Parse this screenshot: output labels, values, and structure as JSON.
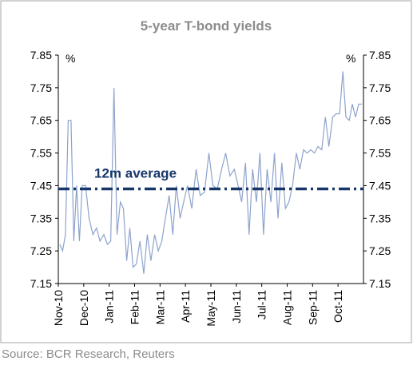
{
  "chart_data": {
    "type": "line",
    "title": "5-year T-bond yields",
    "ylabel": "%",
    "y2label": "%",
    "source": "Source: BCR Research, Reuters",
    "xlim": [
      0,
      12
    ],
    "xticks": [
      {
        "value": 0,
        "label": "Nov-10"
      },
      {
        "value": 1,
        "label": "Dec-10"
      },
      {
        "value": 2,
        "label": "Jan-11"
      },
      {
        "value": 3,
        "label": "Feb-11"
      },
      {
        "value": 4,
        "label": "Mar-11"
      },
      {
        "value": 5,
        "label": "Apr-11"
      },
      {
        "value": 6,
        "label": "May-11"
      },
      {
        "value": 7,
        "label": "Jun-11"
      },
      {
        "value": 8,
        "label": "Jul-11"
      },
      {
        "value": 9,
        "label": "Aug-11"
      },
      {
        "value": 10,
        "label": "Sep-11"
      },
      {
        "value": 11,
        "label": "Oct-11"
      }
    ],
    "ylim": [
      7.15,
      7.85
    ],
    "yticks": [
      7.15,
      7.25,
      7.35,
      7.45,
      7.55,
      7.65,
      7.75,
      7.85
    ],
    "y2lim": [
      7.15,
      7.85
    ],
    "y2ticks": [
      7.15,
      7.25,
      7.35,
      7.45,
      7.55,
      7.65,
      7.75,
      7.85
    ],
    "series": [
      {
        "name": "5-year T-bond yield",
        "color": "#8ea3cc",
        "x": [
          0.06,
          0.17,
          0.28,
          0.39,
          0.5,
          0.61,
          0.72,
          0.83,
          0.94,
          1.07,
          1.21,
          1.36,
          1.5,
          1.64,
          1.79,
          1.93,
          2.06,
          2.19,
          2.31,
          2.44,
          2.56,
          2.69,
          2.81,
          2.94,
          3.07,
          3.21,
          3.36,
          3.5,
          3.64,
          3.79,
          3.93,
          4.07,
          4.21,
          4.36,
          4.5,
          4.64,
          4.79,
          4.93,
          5.08,
          5.25,
          5.42,
          5.58,
          5.75,
          5.92,
          6.08,
          6.25,
          6.42,
          6.58,
          6.75,
          6.92,
          7.07,
          7.21,
          7.36,
          7.5,
          7.64,
          7.79,
          7.93,
          8.07,
          8.21,
          8.36,
          8.5,
          8.64,
          8.79,
          8.93,
          9.07,
          9.21,
          9.36,
          9.5,
          9.64,
          9.79,
          9.93,
          10.07,
          10.21,
          10.36,
          10.5,
          10.64,
          10.79,
          10.93,
          11.06,
          11.19,
          11.31,
          11.44,
          11.56,
          11.69,
          11.81,
          11.94
        ],
        "values": [
          7.27,
          7.25,
          7.3,
          7.65,
          7.65,
          7.28,
          7.45,
          7.28,
          7.45,
          7.45,
          7.35,
          7.3,
          7.32,
          7.28,
          7.3,
          7.27,
          7.28,
          7.75,
          7.3,
          7.4,
          7.38,
          7.22,
          7.32,
          7.2,
          7.21,
          7.28,
          7.18,
          7.3,
          7.22,
          7.3,
          7.25,
          7.28,
          7.35,
          7.42,
          7.3,
          7.45,
          7.35,
          7.4,
          7.45,
          7.38,
          7.5,
          7.42,
          7.43,
          7.55,
          7.45,
          7.44,
          7.5,
          7.55,
          7.48,
          7.5,
          7.45,
          7.4,
          7.52,
          7.3,
          7.5,
          7.4,
          7.55,
          7.3,
          7.5,
          7.4,
          7.55,
          7.35,
          7.52,
          7.38,
          7.4,
          7.45,
          7.55,
          7.5,
          7.56,
          7.55,
          7.56,
          7.55,
          7.57,
          7.56,
          7.66,
          7.57,
          7.66,
          7.67,
          7.67,
          7.8,
          7.66,
          7.65,
          7.7,
          7.66,
          7.7,
          7.7
        ]
      }
    ],
    "average": {
      "label": "12m average",
      "value": 7.44,
      "color": "#17376b"
    }
  }
}
